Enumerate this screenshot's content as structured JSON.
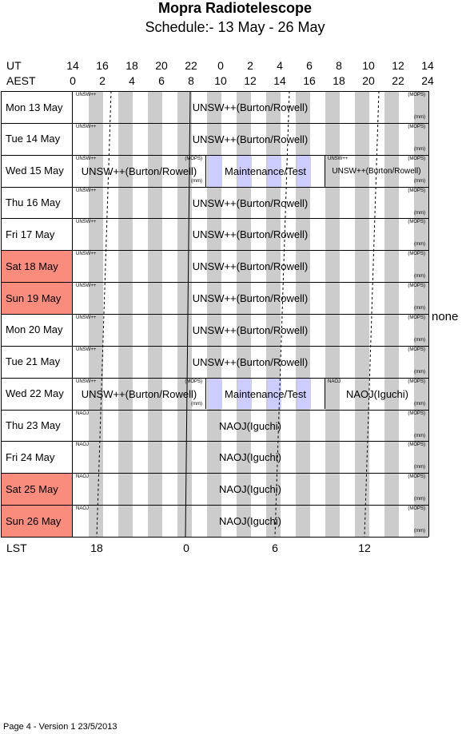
{
  "title": "Mopra Radiotelescope",
  "subtitle": "Schedule:- 13 May - 26 May",
  "header": {
    "ut_label": "UT",
    "aest_label": "AEST",
    "ut_ticks": [
      "14",
      "16",
      "18",
      "20",
      "22",
      "0",
      "2",
      "4",
      "6",
      "8",
      "10",
      "12",
      "14"
    ],
    "aest_ticks": [
      "0",
      "2",
      "4",
      "6",
      "8",
      "10",
      "12",
      "14",
      "16",
      "18",
      "20",
      "22",
      "24"
    ]
  },
  "days": [
    {
      "label": "Mon  13 May",
      "weekend": false
    },
    {
      "label": "Tue  14 May",
      "weekend": false
    },
    {
      "label": "Wed 15 May",
      "weekend": false
    },
    {
      "label": "Thu  16 May",
      "weekend": false
    },
    {
      "label": "Fri    17 May",
      "weekend": false
    },
    {
      "label": "Sat   18 May",
      "weekend": true
    },
    {
      "label": "Sun  19 May",
      "weekend": true
    },
    {
      "label": "Mon  20 May",
      "weekend": false
    },
    {
      "label": "Tue  21 May",
      "weekend": false
    },
    {
      "label": "Wed 22 May",
      "weekend": false
    },
    {
      "label": "Thu  23 May",
      "weekend": false
    },
    {
      "label": "Fri    24 May",
      "weekend": false
    },
    {
      "label": "Sat   25 May",
      "weekend": true
    },
    {
      "label": "Sun  26 May",
      "weekend": true
    }
  ],
  "labels": {
    "unsw_main": "UNSW++(Burton/Rowell)",
    "unsw_tiny": "UNSW++",
    "mops": "(MOPS)",
    "mm": "(mm)",
    "maintenance": "Maintenance/Test",
    "naoj_main": "NAOJ(Iguchi)",
    "naoj_tiny": "NAOJ"
  },
  "side_note": "none",
  "lst": {
    "label": "LST",
    "ticks": [
      "18",
      "0",
      "6",
      "12"
    ]
  },
  "footer": "Page 4 - Version 1  23/5/2013",
  "colors": {
    "weekend": "#fa8c7d",
    "stripe": "#cccccc",
    "maintenance": "#ccccff"
  }
}
